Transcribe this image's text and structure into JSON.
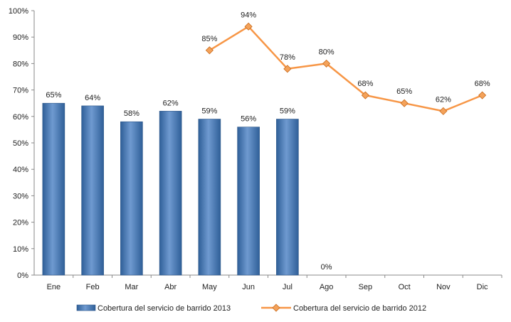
{
  "chart_data": {
    "type": "bar+line",
    "categories": [
      "Ene",
      "Feb",
      "Mar",
      "Abr",
      "May",
      "Jun",
      "Jul",
      "Ago",
      "Sep",
      "Oct",
      "Nov",
      "Dic"
    ],
    "ylim": [
      0,
      100
    ],
    "yticks": [
      "0%",
      "10%",
      "20%",
      "30%",
      "40%",
      "50%",
      "60%",
      "70%",
      "80%",
      "90%",
      "100%"
    ],
    "grid": false,
    "legend_position": "bottom",
    "series": [
      {
        "name": "Cobertura del servicio de barrido 2013",
        "kind": "bar",
        "color": "#4f81bd",
        "values": [
          65,
          64,
          58,
          62,
          59,
          56,
          59,
          0,
          null,
          null,
          null,
          null
        ],
        "labels": [
          "65%",
          "64%",
          "58%",
          "62%",
          "59%",
          "56%",
          "59%",
          "0%",
          "",
          "",
          "",
          ""
        ]
      },
      {
        "name": "Cobertura del servicio de barrido 2012",
        "kind": "line",
        "color": "#f79646",
        "values": [
          null,
          null,
          null,
          null,
          85,
          94,
          78,
          80,
          68,
          65,
          62,
          68
        ],
        "labels": [
          "",
          "",
          "",
          "",
          "85%",
          "94%",
          "78%",
          "80%",
          "68%",
          "65%",
          "62%",
          "68%"
        ]
      }
    ]
  }
}
